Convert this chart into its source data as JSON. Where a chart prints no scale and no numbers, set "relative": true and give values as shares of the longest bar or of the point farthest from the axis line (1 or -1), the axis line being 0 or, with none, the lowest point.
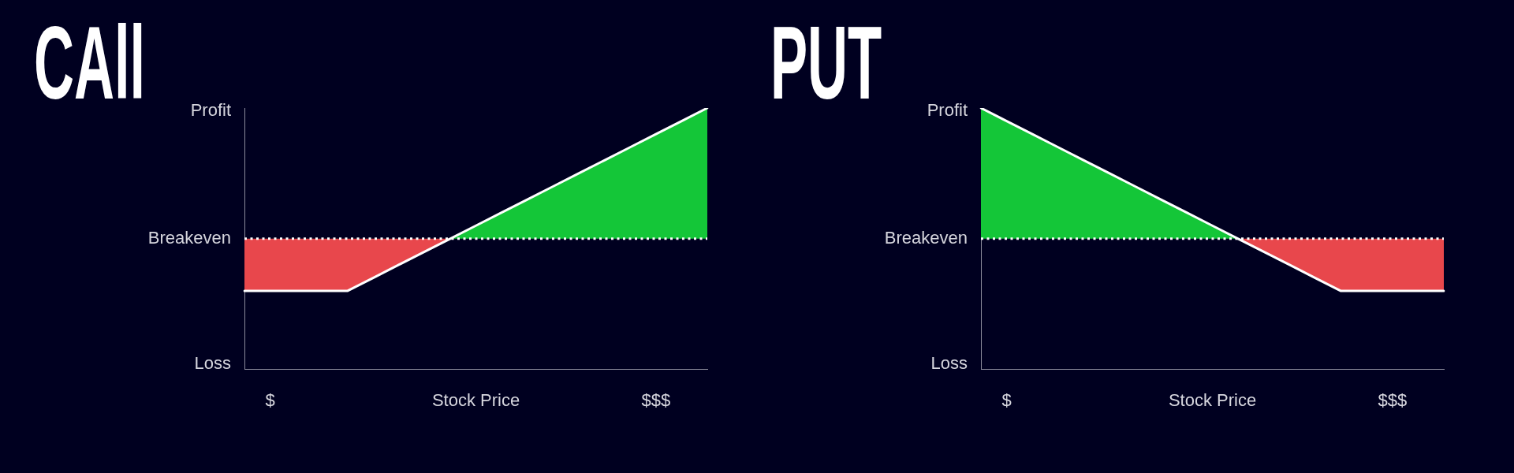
{
  "chart_data": [
    {
      "type": "line",
      "title": "CAll",
      "xlabel": "Stock Price",
      "relative": true,
      "marker": "none",
      "categories": [
        null,
        "$",
        null,
        null,
        null,
        null,
        null,
        null,
        null,
        null,
        null,
        null,
        null,
        null,
        null,
        null,
        "$$$",
        null,
        null
      ],
      "series": [
        {
          "color": "#ffffff",
          "values": [
            -0.4,
            -0.4,
            -0.4,
            -0.4,
            -0.4,
            -0.3,
            -0.2,
            -0.1,
            0,
            0.1,
            0.2,
            0.3,
            0.4,
            0.5,
            0.6,
            0.7,
            0.8,
            0.9,
            1
          ]
        },
        {
          "type": "area",
          "color": "#e8474c",
          "values": [
            -0.4,
            -0.4,
            -0.4,
            -0.4,
            -0.4,
            -0.3,
            -0.2,
            -0.1,
            0,
            null,
            null,
            null,
            null,
            null,
            null,
            null,
            null,
            null,
            null
          ]
        },
        {
          "type": "area",
          "color": "#14c638",
          "values": [
            null,
            null,
            null,
            null,
            null,
            null,
            null,
            null,
            0,
            0.1,
            0.2,
            0.3,
            0.4,
            0.5,
            0.6,
            0.7,
            0.8,
            0.9,
            1
          ]
        }
      ],
      "ref_lines": [
        {
          "axis": "y",
          "value": 0,
          "label": "Breakeven",
          "color": "#ffffff",
          "line_style": "dotted"
        }
      ],
      "annotations": [
        "Profit",
        "Loss"
      ]
    },
    {
      "type": "line",
      "title": "PUT",
      "xlabel": "Stock Price",
      "relative": true,
      "marker": "none",
      "categories": [
        null,
        "$",
        null,
        null,
        null,
        null,
        null,
        null,
        null,
        null,
        null,
        null,
        null,
        null,
        null,
        null,
        "$$$",
        null,
        null
      ],
      "series": [
        {
          "color": "#ffffff",
          "values": [
            1,
            0.9,
            0.8,
            0.7,
            0.6,
            0.5,
            0.4,
            0.3,
            0.2,
            0.1,
            0,
            -0.1,
            -0.2,
            -0.3,
            -0.4,
            -0.4,
            -0.4,
            -0.4,
            -0.4
          ]
        },
        {
          "type": "area",
          "color": "#14c638",
          "values": [
            1,
            0.9,
            0.8,
            0.7,
            0.6,
            0.5,
            0.4,
            0.3,
            0.2,
            0.1,
            0,
            null,
            null,
            null,
            null,
            null,
            null,
            null,
            null
          ]
        },
        {
          "type": "area",
          "color": "#e8474c",
          "values": [
            null,
            null,
            null,
            null,
            null,
            null,
            null,
            null,
            null,
            null,
            0,
            -0.1,
            -0.2,
            -0.3,
            -0.4,
            -0.4,
            -0.4,
            -0.4,
            -0.4
          ]
        }
      ],
      "ref_lines": [
        {
          "axis": "y",
          "value": 0,
          "label": "Breakeven",
          "color": "#ffffff",
          "line_style": "dotted"
        }
      ],
      "annotations": [
        "Profit",
        "Loss"
      ]
    }
  ]
}
